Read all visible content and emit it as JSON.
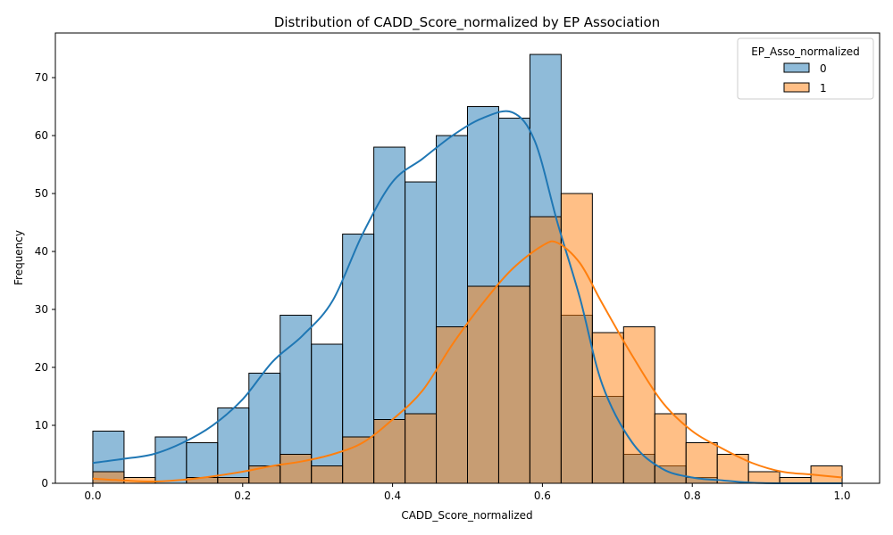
{
  "chart_data": {
    "type": "histogram",
    "title": "Distribution of CADD_Score_normalized by EP Association",
    "xlabel": "CADD_Score_normalized",
    "ylabel": "Frequency",
    "xlim": [
      -0.05,
      1.05
    ],
    "ylim": [
      0,
      77.7
    ],
    "x_ticks": [
      "0.0",
      "0.2",
      "0.4",
      "0.6",
      "0.8",
      "1.0"
    ],
    "y_ticks": [
      "0",
      "10",
      "20",
      "30",
      "40",
      "50",
      "60",
      "70"
    ],
    "bin_edges": [
      0.0,
      0.04167,
      0.08333,
      0.125,
      0.16667,
      0.20833,
      0.25,
      0.29167,
      0.33333,
      0.375,
      0.41667,
      0.45833,
      0.5,
      0.54167,
      0.58333,
      0.625,
      0.66667,
      0.70833,
      0.75,
      0.79167,
      0.83333,
      0.875,
      0.91667,
      0.95833,
      1.0
    ],
    "grid": false,
    "legend": {
      "title": "EP_Asso_normalized",
      "position": "top-right",
      "entries": [
        "0",
        "1"
      ]
    },
    "series": [
      {
        "name": "0",
        "color": "#1f77b4",
        "fill": "#8ab8d9",
        "values": [
          9,
          0,
          8,
          7,
          13,
          19,
          29,
          24,
          43,
          58,
          52,
          60,
          65,
          63,
          74,
          29,
          15,
          5,
          3,
          1,
          0,
          0,
          0,
          0
        ],
        "kde": [
          [
            0.0,
            3.5
          ],
          [
            0.04,
            4.2
          ],
          [
            0.08,
            5.0
          ],
          [
            0.12,
            7.0
          ],
          [
            0.16,
            10.0
          ],
          [
            0.2,
            14.5
          ],
          [
            0.24,
            21.0
          ],
          [
            0.28,
            25.5
          ],
          [
            0.32,
            31.5
          ],
          [
            0.36,
            43.0
          ],
          [
            0.4,
            52.0
          ],
          [
            0.44,
            56.0
          ],
          [
            0.48,
            60.0
          ],
          [
            0.52,
            63.0
          ],
          [
            0.56,
            64.0
          ],
          [
            0.59,
            59.0
          ],
          [
            0.62,
            45.0
          ],
          [
            0.65,
            32.0
          ],
          [
            0.68,
            17.0
          ],
          [
            0.72,
            7.0
          ],
          [
            0.76,
            2.5
          ],
          [
            0.8,
            1.0
          ],
          [
            0.84,
            0.5
          ],
          [
            0.88,
            0.1
          ],
          [
            0.92,
            0.0
          ],
          [
            0.96,
            0.0
          ],
          [
            1.0,
            0.0
          ]
        ]
      },
      {
        "name": "1",
        "color": "#ff7f0e",
        "fill": "#ffbe86",
        "values": [
          2,
          1,
          0,
          1,
          1,
          3,
          5,
          3,
          8,
          11,
          12,
          27,
          34,
          34,
          46,
          50,
          26,
          27,
          12,
          7,
          5,
          2,
          1,
          3
        ],
        "kde": [
          [
            0.0,
            0.8
          ],
          [
            0.04,
            0.5
          ],
          [
            0.08,
            0.3
          ],
          [
            0.12,
            0.6
          ],
          [
            0.16,
            1.2
          ],
          [
            0.2,
            2.0
          ],
          [
            0.24,
            3.0
          ],
          [
            0.28,
            3.8
          ],
          [
            0.32,
            5.0
          ],
          [
            0.36,
            7.0
          ],
          [
            0.4,
            11.0
          ],
          [
            0.44,
            16.0
          ],
          [
            0.48,
            24.0
          ],
          [
            0.52,
            31.0
          ],
          [
            0.56,
            37.0
          ],
          [
            0.6,
            41.0
          ],
          [
            0.62,
            41.5
          ],
          [
            0.65,
            38.0
          ],
          [
            0.68,
            31.0
          ],
          [
            0.72,
            22.0
          ],
          [
            0.76,
            14.0
          ],
          [
            0.8,
            9.0
          ],
          [
            0.84,
            6.0
          ],
          [
            0.88,
            3.5
          ],
          [
            0.92,
            2.0
          ],
          [
            0.96,
            1.5
          ],
          [
            1.0,
            1.0
          ]
        ]
      }
    ]
  }
}
